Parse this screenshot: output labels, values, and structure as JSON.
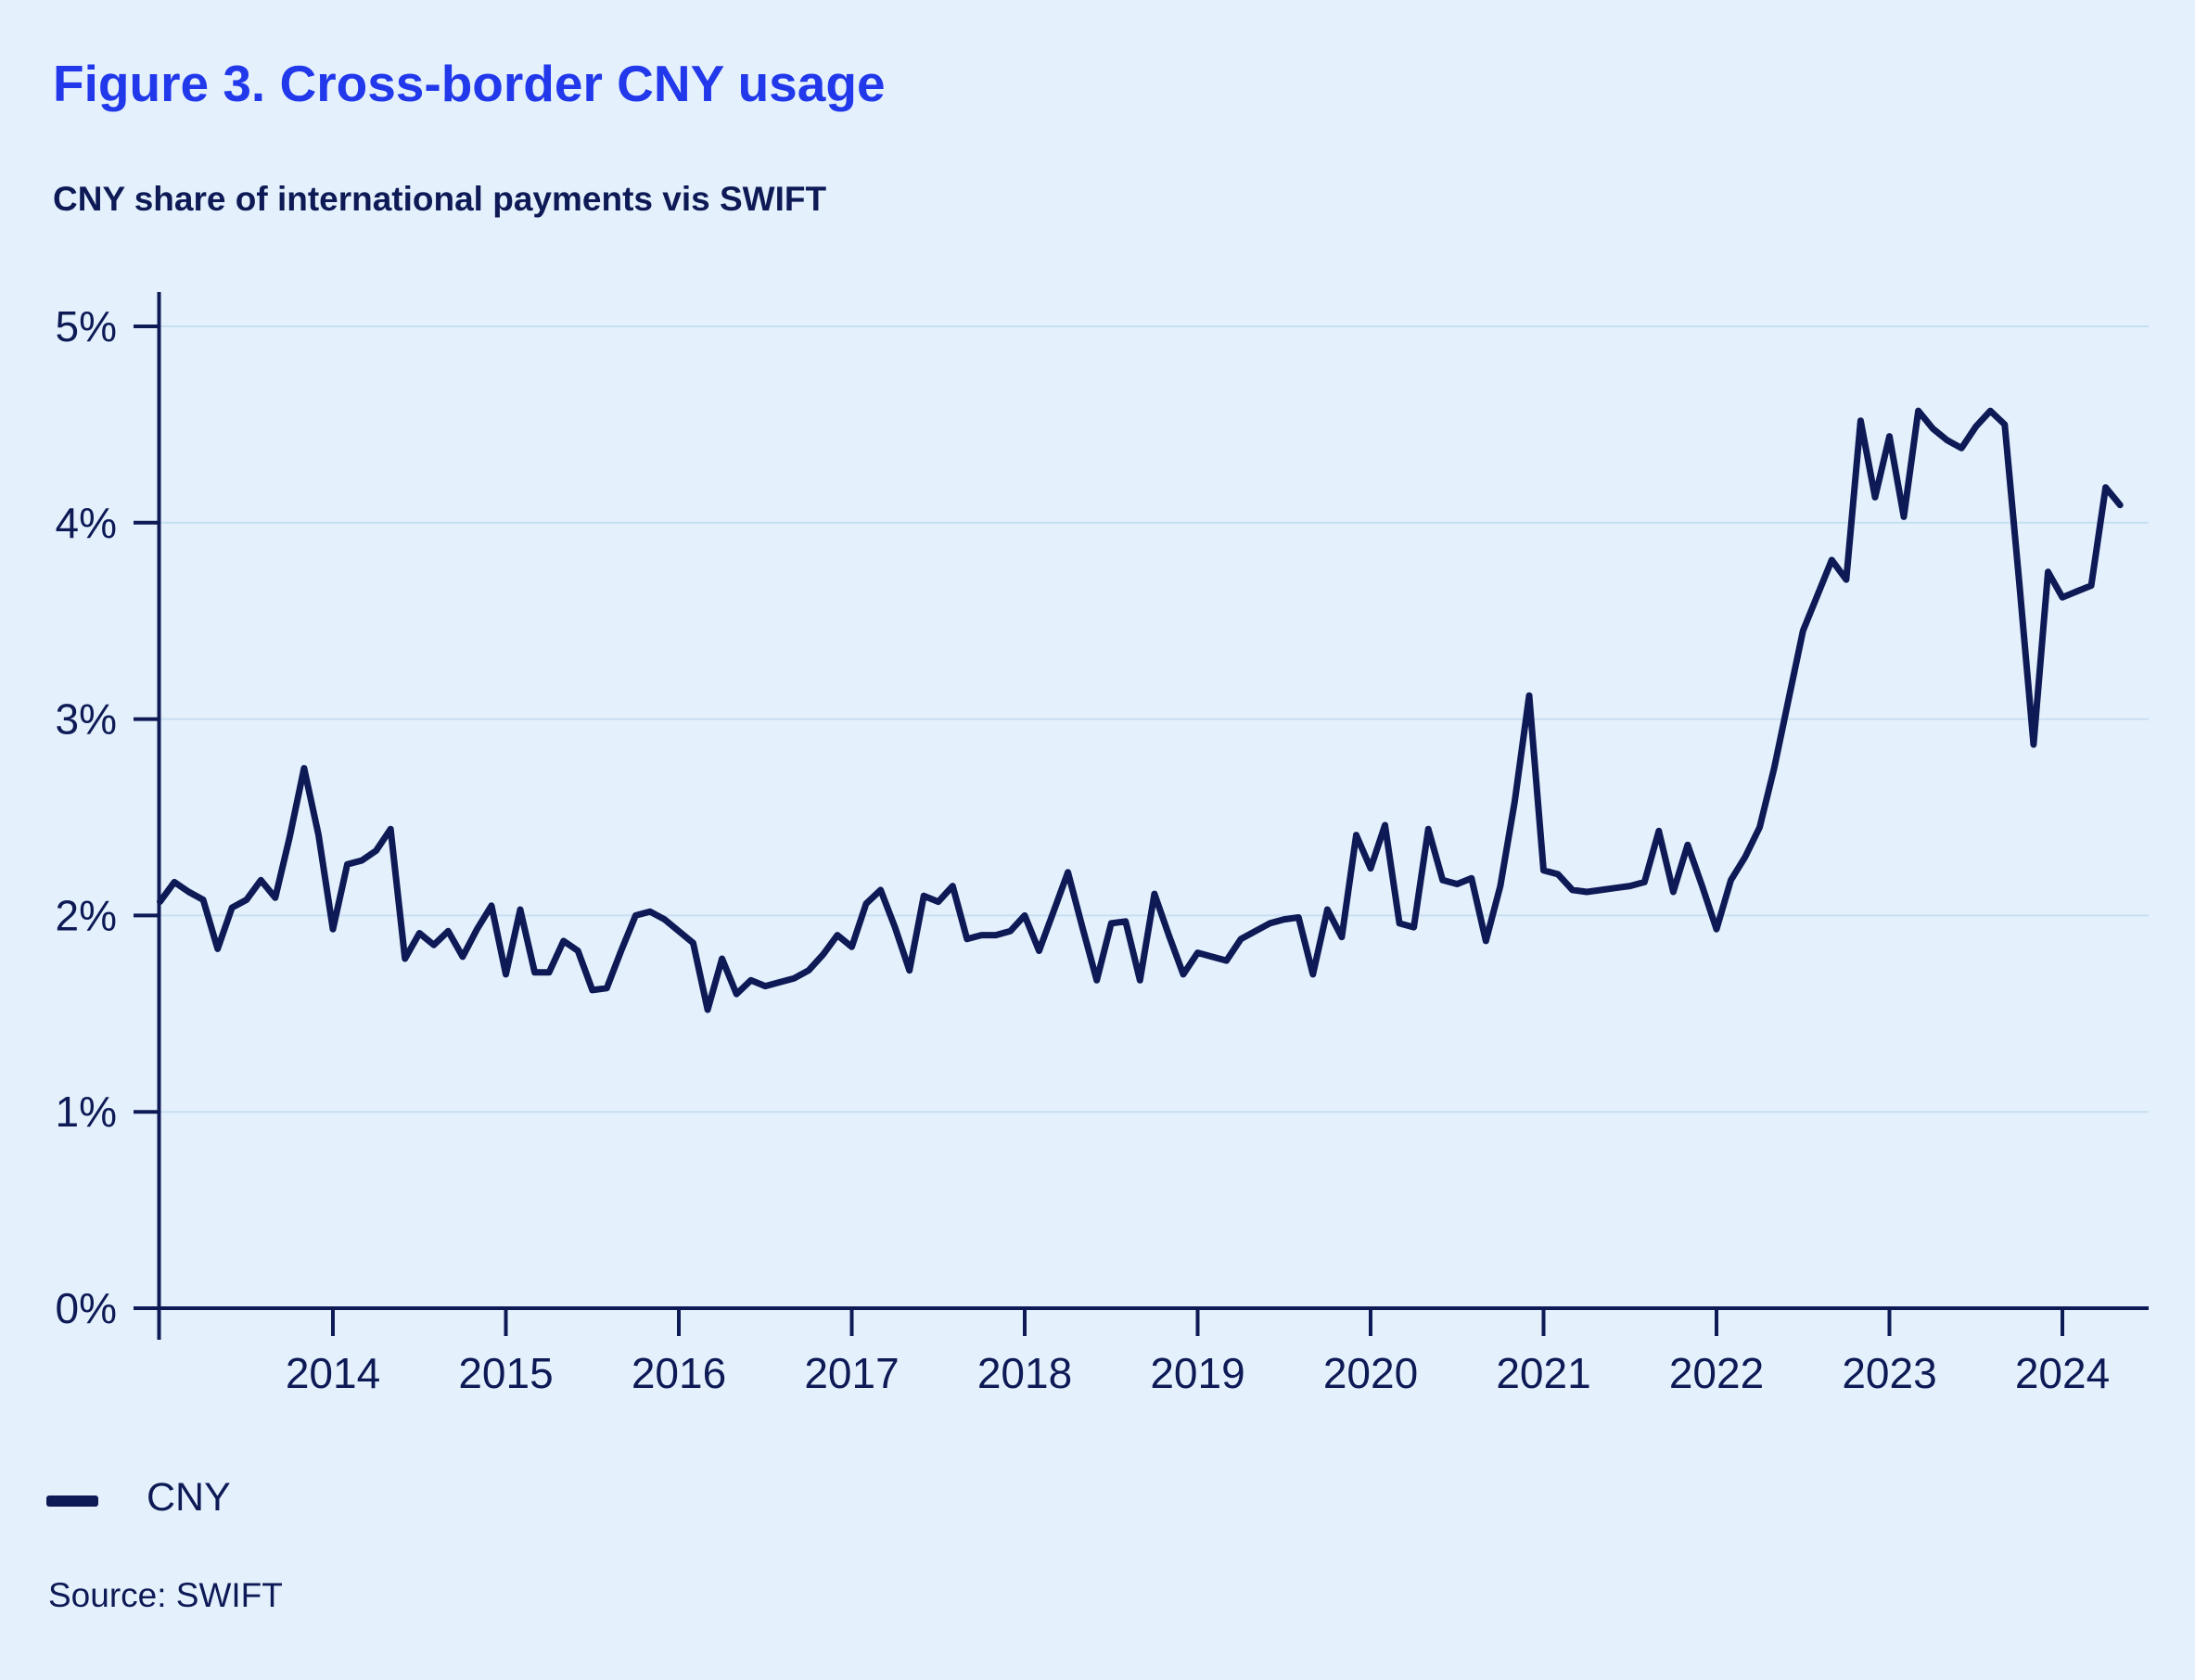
{
  "figure": {
    "title": "Figure 3. Cross-border CNY usage",
    "subtitle": "CNY share of international payments vis SWIFT",
    "source": "Source: SWIFT",
    "legend": {
      "label": "CNY"
    }
  },
  "colors": {
    "background": "#E4F1FC",
    "navy": "#0E1A56",
    "title_blue": "#2238EB",
    "gridline": "#C7DFF2",
    "series_line": "#0E1A56"
  },
  "chart_data": {
    "type": "line",
    "title": "CNY share of international payments vis SWIFT",
    "xlabel": "",
    "ylabel": "",
    "ylim": [
      0,
      5
    ],
    "xlim": [
      2013.0,
      2024.55
    ],
    "grid": "horizontal",
    "legend_position": "bottom-left",
    "y_ticks": [
      {
        "value": 0,
        "label": "0%"
      },
      {
        "value": 1,
        "label": "1%"
      },
      {
        "value": 2,
        "label": "2%"
      },
      {
        "value": 3,
        "label": "3%"
      },
      {
        "value": 4,
        "label": "4%"
      },
      {
        "value": 5,
        "label": "5%"
      }
    ],
    "x_ticks": [
      2014,
      2015,
      2016,
      2017,
      2018,
      2019,
      2020,
      2021,
      2022,
      2023,
      2024
    ],
    "series": [
      {
        "name": "CNY",
        "unit": "% share",
        "frequency": "monthly",
        "start_year": 2013,
        "start_month": 1,
        "values": [
          2.07,
          2.17,
          2.12,
          2.08,
          1.83,
          2.04,
          2.08,
          2.18,
          2.09,
          2.4,
          2.75,
          2.41,
          1.93,
          2.26,
          2.28,
          2.33,
          2.44,
          1.78,
          1.91,
          1.85,
          1.92,
          1.79,
          1.93,
          2.05,
          1.7,
          2.03,
          1.71,
          1.71,
          1.87,
          1.82,
          1.62,
          1.63,
          1.82,
          2.0,
          2.02,
          1.98,
          1.92,
          1.86,
          1.52,
          1.78,
          1.6,
          1.67,
          1.64,
          1.66,
          1.68,
          1.72,
          1.8,
          1.9,
          1.84,
          2.06,
          2.13,
          1.94,
          1.72,
          2.1,
          2.07,
          2.15,
          1.88,
          1.9,
          1.9,
          1.92,
          2.0,
          1.82,
          2.02,
          2.22,
          1.94,
          1.67,
          1.96,
          1.97,
          1.67,
          2.11,
          1.9,
          1.7,
          1.81,
          1.79,
          1.77,
          1.88,
          1.92,
          1.96,
          1.98,
          1.99,
          1.7,
          2.03,
          1.89,
          2.41,
          2.24,
          2.46,
          1.96,
          1.94,
          2.44,
          2.18,
          2.16,
          2.19,
          1.87,
          2.15,
          2.58,
          3.12,
          2.23,
          2.21,
          2.13,
          2.12,
          2.13,
          2.14,
          2.15,
          2.17,
          2.43,
          2.12,
          2.36,
          2.15,
          1.93,
          2.18,
          2.3,
          2.45,
          2.75,
          3.1,
          3.45,
          3.63,
          3.81,
          3.71,
          4.52,
          4.13,
          4.44,
          4.03,
          4.57,
          4.48,
          4.42,
          4.38,
          4.49,
          4.57,
          4.5,
          3.7,
          2.87,
          3.75,
          3.62,
          3.65,
          3.68,
          4.18,
          4.09
        ]
      }
    ]
  }
}
